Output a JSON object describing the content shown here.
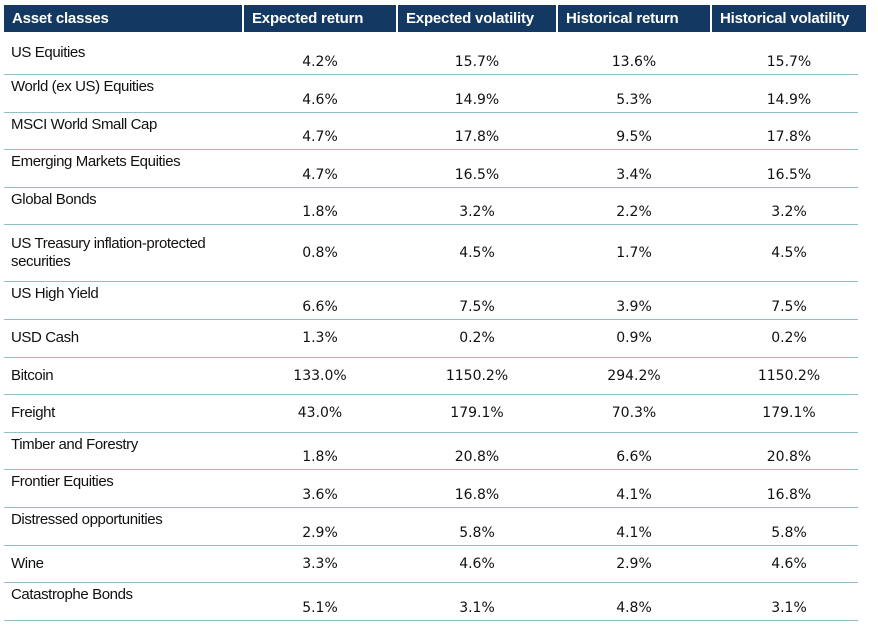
{
  "headers": [
    "Asset classes",
    "Expected  return",
    "Expected  volatility",
    "Historical  return",
    "Historical  volatility"
  ],
  "rows": [
    {
      "name": "US Equities",
      "expected_return": "4.2%",
      "expected_volatility": "15.7%",
      "historical_return": "13.6%",
      "historical_volatility": "15.7%"
    },
    {
      "name": "World (ex US)  Equities",
      "expected_return": "4.6%",
      "expected_volatility": "14.9%",
      "historical_return": "5.3%",
      "historical_volatility": "14.9%"
    },
    {
      "name": "MSCI World  Small Cap",
      "expected_return": "4.7%",
      "expected_volatility": "17.8%",
      "historical_return": "9.5%",
      "historical_volatility": "17.8%"
    },
    {
      "name": "Emerging Markets  Equities",
      "expected_return": "4.7%",
      "expected_volatility": "16.5%",
      "historical_return": "3.4%",
      "historical_volatility": "16.5%"
    },
    {
      "name": "Global  Bonds",
      "expected_return": "1.8%",
      "expected_volatility": "3.2%",
      "historical_return": "2.2%",
      "historical_volatility": "3.2%"
    },
    {
      "name": "US Treasury inflation-protected securities",
      "expected_return": "0.8%",
      "expected_volatility": "4.5%",
      "historical_return": "1.7%",
      "historical_volatility": "4.5%"
    },
    {
      "name": "US High  Yield",
      "expected_return": "6.6%",
      "expected_volatility": "7.5%",
      "historical_return": "3.9%",
      "historical_volatility": "7.5%"
    },
    {
      "name": "USD Cash",
      "expected_return": "1.3%",
      "expected_volatility": "0.2%",
      "historical_return": "0.9%",
      "historical_volatility": "0.2%"
    },
    {
      "name": "Bitcoin",
      "expected_return": "133.0%",
      "expected_volatility": "1150.2%",
      "historical_return": "294.2%",
      "historical_volatility": "1150.2%"
    },
    {
      "name": "Freight",
      "expected_return": "43.0%",
      "expected_volatility": "179.1%",
      "historical_return": "70.3%",
      "historical_volatility": "179.1%"
    },
    {
      "name": "Timber and  Forestry",
      "expected_return": "1.8%",
      "expected_volatility": "20.8%",
      "historical_return": "6.6%",
      "historical_volatility": "20.8%"
    },
    {
      "name": "Frontier  Equities",
      "expected_return": "3.6%",
      "expected_volatility": "16.8%",
      "historical_return": "4.1%",
      "historical_volatility": "16.8%"
    },
    {
      "name": "Distressed  opportunities",
      "expected_return": "2.9%",
      "expected_volatility": "5.8%",
      "historical_return": "4.1%",
      "historical_volatility": "5.8%"
    },
    {
      "name": "Wine",
      "expected_return": "3.3%",
      "expected_volatility": "4.6%",
      "historical_return": "2.9%",
      "historical_volatility": "4.6%"
    },
    {
      "name": "Catastrophe  Bonds",
      "expected_return": "5.1%",
      "expected_volatility": "3.1%",
      "historical_return": "4.8%",
      "historical_volatility": "3.1%"
    }
  ]
}
